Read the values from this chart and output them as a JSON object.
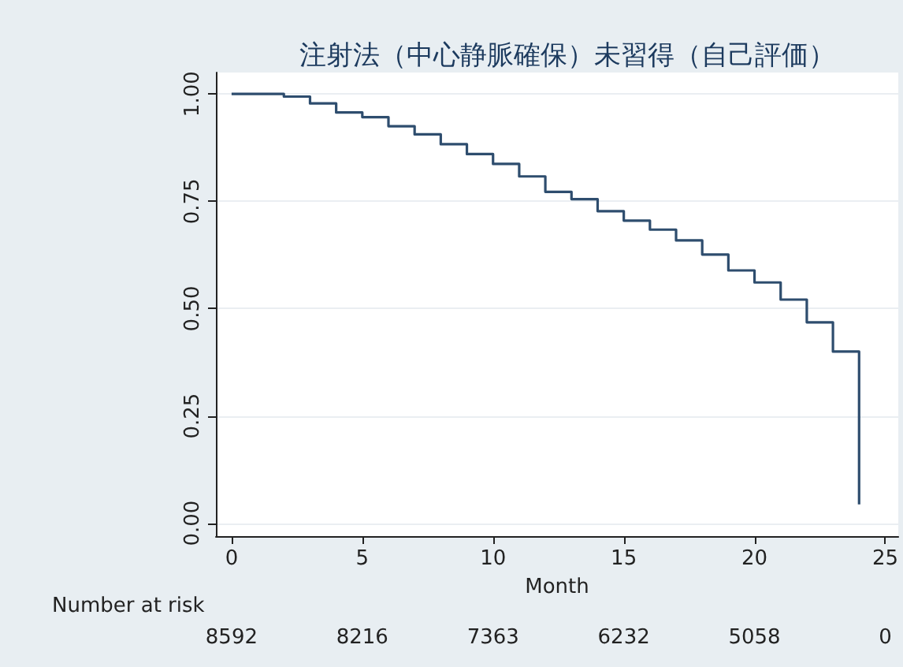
{
  "chart_data": {
    "type": "step",
    "title": "注射法（中心静脈確保）未習得（自己評価）",
    "xlabel": "Month",
    "x": [
      0,
      2,
      3,
      4,
      5,
      6,
      7,
      8,
      9,
      10,
      11,
      12,
      13,
      14,
      15,
      16,
      17,
      18,
      19,
      20,
      21,
      22,
      23,
      24
    ],
    "values": [
      1.0,
      0.994,
      0.978,
      0.957,
      0.946,
      0.925,
      0.906,
      0.883,
      0.86,
      0.837,
      0.808,
      0.772,
      0.755,
      0.727,
      0.705,
      0.684,
      0.659,
      0.626,
      0.589,
      0.561,
      0.521,
      0.468,
      0.4,
      0.044
    ],
    "color": "#2e4d6e",
    "xlim": [
      -0.6,
      25.5
    ],
    "xticks": [
      0,
      5,
      10,
      15,
      20,
      25
    ],
    "ylim": [
      -0.03,
      1.05
    ],
    "yticks": [
      {
        "value": 0,
        "label": "0.00"
      },
      {
        "value": 0.25,
        "label": "0.25"
      },
      {
        "value": 0.5,
        "label": "0.50"
      },
      {
        "value": 0.75,
        "label": "0.75"
      },
      {
        "value": 1,
        "label": "1.00"
      }
    ],
    "grid": "y",
    "annotations": [
      "Number at risk",
      "8592",
      "8216",
      "7363",
      "6232",
      "5058",
      "0"
    ]
  }
}
